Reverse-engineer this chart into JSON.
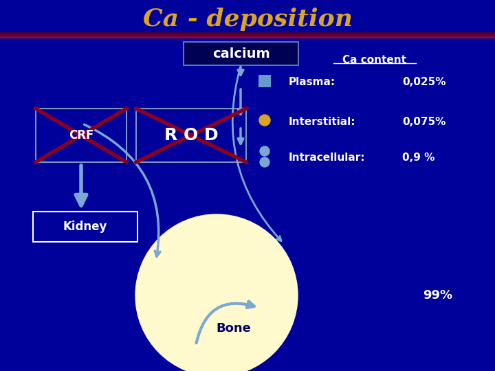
{
  "bg": "#00009A",
  "title": "Ca - deposition",
  "title_color": "#DAA520",
  "sep_color1": "#5B0020",
  "sep_color2": "#9B0040",
  "white": "#FFFFFF",
  "arrow_blue": "#7BA7D4",
  "cross_red": "#8B0020",
  "bone_yellow": "#FFFACD",
  "dark_navy": "#000055",
  "calcium_text": "calcium",
  "ca_content": "Ca content",
  "row_labels": [
    "Plasma:",
    "Interstitial:",
    "Intracellular:"
  ],
  "row_values": [
    "0,025%",
    "0,075%",
    "0,9 %"
  ],
  "crf": "CRF",
  "rod": "R O D",
  "kidney": "Kidney",
  "bone": "Bone",
  "bone_pct": "99%",
  "plasma_sq_color": "#6699CC",
  "inter_dot_color": "#DAA520",
  "intra_shape_color": "#7BA7D4",
  "box_edge_color": "#7799BB",
  "kid_edge_color": "#FFFFFF",
  "calc_box_bg": "#000055",
  "calc_box_edge": "#5577BB"
}
